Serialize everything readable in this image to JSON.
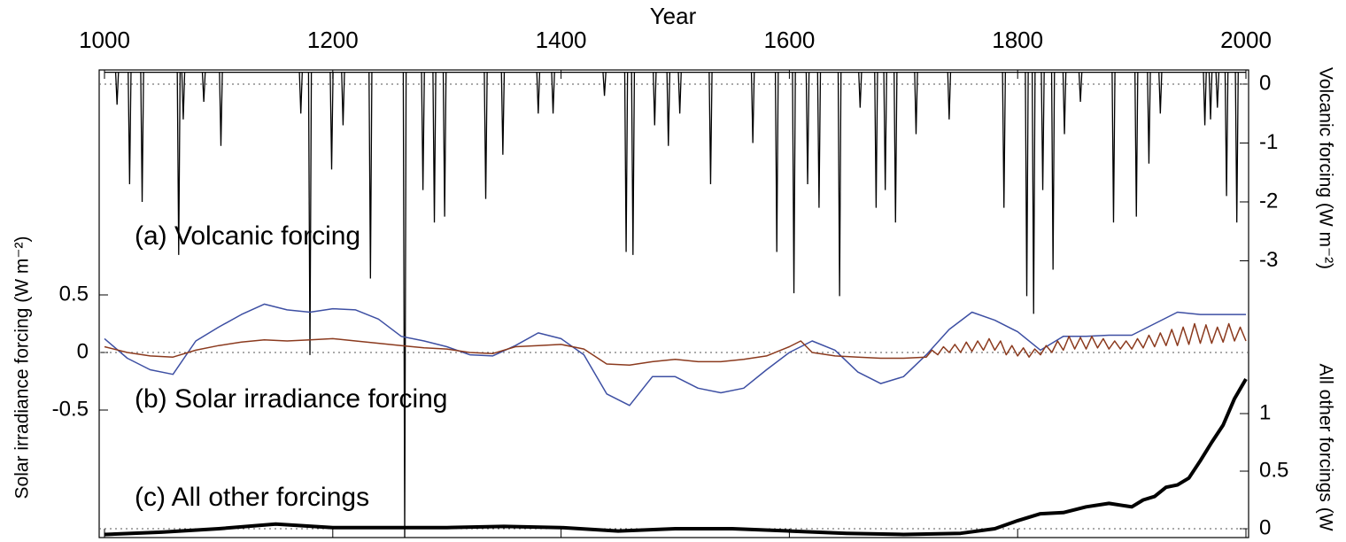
{
  "chart_data": [
    {
      "type": "spike",
      "title": "(a) Volcanic forcing",
      "x_label": "Year",
      "y_label": "Volcanic forcing  (W m⁻²)",
      "axis_side": "right",
      "xlim": [
        1000,
        2000
      ],
      "xticks": [
        1000,
        1200,
        1400,
        1600,
        1800,
        2000
      ],
      "ylim": [
        -4,
        0.24
      ],
      "yticks": [
        0,
        -1,
        -2,
        -3
      ],
      "color": "#000000",
      "baseline": 0.2,
      "x": [
        1011,
        1022,
        1033,
        1065,
        1069,
        1087,
        1102,
        1172,
        1180,
        1199,
        1209,
        1233,
        1263,
        1279,
        1289,
        1298,
        1334,
        1349,
        1380,
        1393,
        1438,
        1457,
        1463,
        1482,
        1494,
        1504,
        1531,
        1568,
        1589,
        1604,
        1616,
        1626,
        1644,
        1662,
        1676,
        1684,
        1693,
        1711,
        1740,
        1788,
        1808,
        1814,
        1822,
        1831,
        1841,
        1855,
        1884,
        1904,
        1915,
        1925,
        1964,
        1969,
        1975,
        1983,
        1992
      ],
      "values": [
        -0.35,
        -1.7,
        -2.0,
        -2.9,
        -0.6,
        -0.3,
        -1.05,
        -0.5,
        -4.6,
        -1.45,
        -0.7,
        -3.3,
        -7.7,
        -1.8,
        -2.35,
        -2.25,
        -1.95,
        -1.2,
        -0.5,
        -0.5,
        -0.2,
        -2.85,
        -2.9,
        -0.7,
        -1.05,
        -0.5,
        -1.7,
        -1.0,
        -2.85,
        -3.55,
        -1.7,
        -2.1,
        -3.6,
        -0.4,
        -2.1,
        -1.8,
        -2.35,
        -0.85,
        -0.6,
        -2.1,
        -3.6,
        -3.9,
        -1.8,
        -3.15,
        -0.85,
        -0.3,
        -2.35,
        -2.25,
        -1.35,
        -0.5,
        -0.7,
        -0.6,
        -0.4,
        -1.9,
        -2.35
      ]
    },
    {
      "type": "line",
      "title": "(b) Solar irradiance forcing",
      "y_label": "Solar irradiance forcing  (W m⁻²)",
      "axis_side": "left",
      "xlim": [
        1000,
        2000
      ],
      "ylim": [
        -1,
        0.75
      ],
      "yticks": [
        0.5,
        0,
        -0.5
      ],
      "series": [
        {
          "color": "#3d4fa3",
          "x": [
            1000,
            1020,
            1040,
            1060,
            1080,
            1100,
            1120,
            1140,
            1160,
            1180,
            1200,
            1220,
            1240,
            1260,
            1280,
            1300,
            1320,
            1340,
            1360,
            1380,
            1400,
            1420,
            1440,
            1460,
            1480,
            1500,
            1520,
            1540,
            1560,
            1580,
            1600,
            1620,
            1640,
            1660,
            1680,
            1700,
            1720,
            1740,
            1760,
            1780,
            1800,
            1820,
            1840,
            1860,
            1880,
            1900,
            1920,
            1940,
            1960,
            1980,
            2000
          ],
          "values": [
            0.12,
            -0.05,
            -0.15,
            -0.19,
            0.1,
            0.22,
            0.33,
            0.42,
            0.37,
            0.35,
            0.38,
            0.37,
            0.29,
            0.14,
            0.1,
            0.05,
            -0.02,
            -0.03,
            0.06,
            0.17,
            0.12,
            -0.02,
            -0.36,
            -0.46,
            -0.21,
            -0.21,
            -0.31,
            -0.35,
            -0.31,
            -0.15,
            0,
            0.1,
            0.02,
            -0.17,
            -0.27,
            -0.21,
            -0.02,
            0.2,
            0.35,
            0.28,
            0.18,
            0.02,
            0.14,
            0.14,
            0.15,
            0.15,
            0.25,
            0.35,
            0.33,
            0.33,
            0.33
          ]
        },
        {
          "color": "#8b3a1e",
          "x": [
            1000,
            1020,
            1040,
            1060,
            1080,
            1100,
            1120,
            1140,
            1160,
            1180,
            1200,
            1220,
            1240,
            1260,
            1280,
            1300,
            1320,
            1340,
            1360,
            1380,
            1400,
            1420,
            1440,
            1460,
            1480,
            1500,
            1520,
            1540,
            1560,
            1580,
            1600,
            1610,
            1620,
            1640,
            1660,
            1680,
            1700,
            1720,
            1725,
            1730,
            1735,
            1740,
            1745,
            1750,
            1755,
            1760,
            1765,
            1770,
            1775,
            1780,
            1785,
            1790,
            1795,
            1800,
            1805,
            1810,
            1815,
            1820,
            1825,
            1830,
            1835,
            1840,
            1845,
            1850,
            1855,
            1860,
            1865,
            1870,
            1875,
            1880,
            1885,
            1890,
            1895,
            1900,
            1905,
            1910,
            1915,
            1920,
            1925,
            1930,
            1935,
            1940,
            1945,
            1950,
            1955,
            1960,
            1965,
            1970,
            1975,
            1980,
            1985,
            1990,
            1995,
            2000
          ],
          "values": [
            0.05,
            0,
            -0.03,
            -0.04,
            0.02,
            0.06,
            0.09,
            0.11,
            0.1,
            0.11,
            0.12,
            0.1,
            0.08,
            0.06,
            0.04,
            0.03,
            0,
            -0.01,
            0.05,
            0.06,
            0.07,
            0.03,
            -0.1,
            -0.11,
            -0.08,
            -0.06,
            -0.08,
            -0.08,
            -0.06,
            -0.03,
            0.05,
            0.1,
            0,
            -0.03,
            -0.04,
            -0.05,
            -0.05,
            -0.04,
            0.02,
            -0.02,
            0.05,
            0,
            0.07,
            0,
            0.09,
            0.01,
            0.1,
            0.02,
            0.12,
            0.02,
            0.1,
            -0.02,
            0.06,
            -0.03,
            0.04,
            -0.04,
            0.03,
            -0.02,
            0.06,
            0,
            0.1,
            0.02,
            0.14,
            0.03,
            0.13,
            0.03,
            0.14,
            0.04,
            0.12,
            0.03,
            0.1,
            0.03,
            0.1,
            0.03,
            0.12,
            0.04,
            0.15,
            0.05,
            0.17,
            0.06,
            0.2,
            0.06,
            0.22,
            0.07,
            0.25,
            0.08,
            0.24,
            0.08,
            0.22,
            0.09,
            0.25,
            0.1,
            0.22,
            0.1
          ]
        }
      ]
    },
    {
      "type": "line",
      "title": "(c) All other forcings",
      "y_label": "All other forcings  (W",
      "axis_side": "right",
      "xlim": [
        1000,
        2000
      ],
      "ylim": [
        -0.08,
        1.5
      ],
      "yticks": [
        0,
        0.5,
        1
      ],
      "series": [
        {
          "color": "#000000",
          "x": [
            1000,
            1050,
            1100,
            1150,
            1200,
            1250,
            1300,
            1350,
            1400,
            1450,
            1500,
            1550,
            1600,
            1650,
            1700,
            1750,
            1780,
            1800,
            1820,
            1840,
            1860,
            1880,
            1900,
            1910,
            1920,
            1930,
            1940,
            1950,
            1960,
            1970,
            1980,
            1990,
            2000
          ],
          "values": [
            -0.05,
            -0.03,
            0,
            0.04,
            0.01,
            0.01,
            0.01,
            0.02,
            0.01,
            -0.02,
            0,
            0,
            -0.02,
            -0.04,
            -0.05,
            -0.04,
            0,
            0.07,
            0.13,
            0.14,
            0.19,
            0.22,
            0.19,
            0.25,
            0.28,
            0.36,
            0.38,
            0.44,
            0.59,
            0.75,
            0.9,
            1.13,
            1.3
          ]
        }
      ]
    }
  ]
}
